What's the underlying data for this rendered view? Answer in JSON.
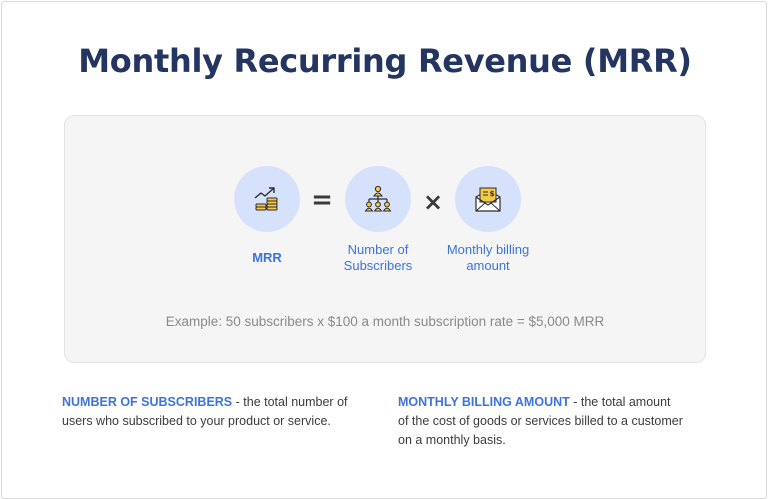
{
  "title": "Monthly Recurring Revenue (MRR)",
  "formula": {
    "result": {
      "icon": "coins-growth-icon",
      "label": "MRR"
    },
    "equals": "=",
    "factor1": {
      "icon": "people-network-icon",
      "label_line1": "Number of",
      "label_line2": "Subscribers"
    },
    "times": "×",
    "factor2": {
      "icon": "invoice-envelope-icon",
      "label_line1": "Monthly billing",
      "label_line2": "amount"
    }
  },
  "example": "Example: 50 subscribers x $100 a month subscription rate = $5,000 MRR",
  "definitions": {
    "subscribers": {
      "term": "NUMBER OF SUBSCRIBERS",
      "text1": " - the total number of",
      "text2": "users who subscribed to your product or service."
    },
    "billing": {
      "term": "MONTHLY BILLING AMOUNT",
      "text1": " - the total amount",
      "text2": "of the cost of goods or services billed to a customer",
      "text3": "on a monthly basis."
    }
  },
  "colors": {
    "title": "#233560",
    "accent": "#3d73dc",
    "circle": "#d6e2fb",
    "icon_fill": "#f7c948",
    "panel": "#f5f5f5"
  }
}
